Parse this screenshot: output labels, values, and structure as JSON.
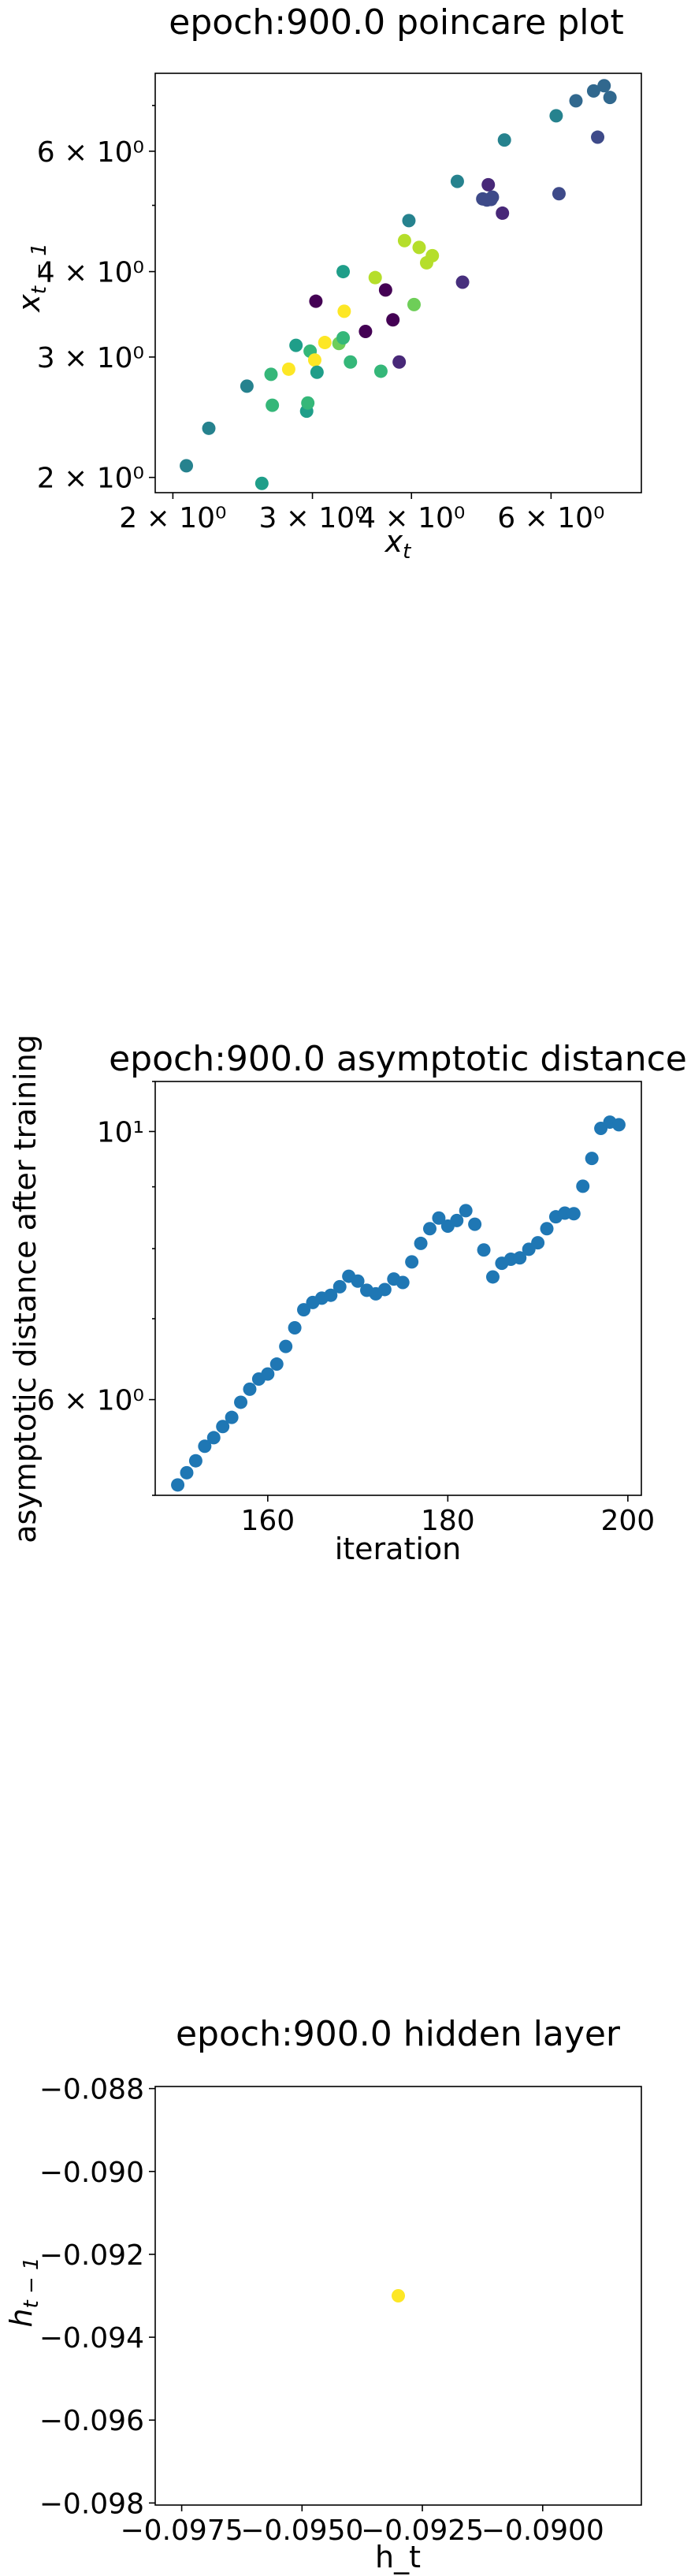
{
  "chart_data": [
    {
      "type": "scatter",
      "title": "epoch:900.0 poincare plot",
      "xlabel": "x_t",
      "ylabel": "x_{t-1}",
      "xscale": "log",
      "yscale": "log",
      "xlim": [
        1.9,
        7.8
      ],
      "ylim": [
        1.9,
        7.8
      ],
      "xticks": [
        {
          "value": 2,
          "label": "2 × 10⁰"
        },
        {
          "value": 3,
          "label": "3 × 10⁰"
        },
        {
          "value": 4,
          "label": "4 × 10⁰"
        },
        {
          "value": 6,
          "label": "6 × 10⁰"
        }
      ],
      "yticks": [
        {
          "value": 2,
          "label": "2 × 10⁰"
        },
        {
          "value": 3,
          "label": "3 × 10⁰"
        },
        {
          "value": 4,
          "label": "4 × 10⁰"
        },
        {
          "value": 6,
          "label": "6 × 10⁰"
        }
      ],
      "grid": false,
      "points": [
        {
          "x": 2.08,
          "y": 2.08,
          "c": "#26828e"
        },
        {
          "x": 2.22,
          "y": 2.36,
          "c": "#26828e"
        },
        {
          "x": 2.48,
          "y": 2.72,
          "c": "#26828e"
        },
        {
          "x": 2.59,
          "y": 1.96,
          "c": "#1f9e89"
        },
        {
          "x": 2.67,
          "y": 2.55,
          "c": "#35b779"
        },
        {
          "x": 2.66,
          "y": 2.83,
          "c": "#35b779"
        },
        {
          "x": 2.86,
          "y": 3.12,
          "c": "#1f9e89"
        },
        {
          "x": 2.8,
          "y": 2.88,
          "c": "#fde725"
        },
        {
          "x": 2.95,
          "y": 2.5,
          "c": "#1f9e89"
        },
        {
          "x": 2.96,
          "y": 2.57,
          "c": "#35b779"
        },
        {
          "x": 2.98,
          "y": 3.06,
          "c": "#35b779"
        },
        {
          "x": 3.02,
          "y": 2.97,
          "c": "#fde725"
        },
        {
          "x": 3.04,
          "y": 2.85,
          "c": "#1f9e89"
        },
        {
          "x": 3.03,
          "y": 3.62,
          "c": "#440154"
        },
        {
          "x": 3.11,
          "y": 3.15,
          "c": "#fde725"
        },
        {
          "x": 3.24,
          "y": 3.14,
          "c": "#6ece58"
        },
        {
          "x": 3.28,
          "y": 3.2,
          "c": "#35b779"
        },
        {
          "x": 3.29,
          "y": 3.5,
          "c": "#fde725"
        },
        {
          "x": 3.28,
          "y": 4.0,
          "c": "#1f9e89"
        },
        {
          "x": 3.35,
          "y": 2.95,
          "c": "#35b779"
        },
        {
          "x": 3.5,
          "y": 3.27,
          "c": "#440154"
        },
        {
          "x": 3.6,
          "y": 3.92,
          "c": "#b5de2b"
        },
        {
          "x": 3.66,
          "y": 2.86,
          "c": "#35b779"
        },
        {
          "x": 3.71,
          "y": 3.76,
          "c": "#440154"
        },
        {
          "x": 3.79,
          "y": 3.4,
          "c": "#440154"
        },
        {
          "x": 3.86,
          "y": 2.95,
          "c": "#482878"
        },
        {
          "x": 3.92,
          "y": 4.44,
          "c": "#b5de2b"
        },
        {
          "x": 3.97,
          "y": 4.75,
          "c": "#26828e"
        },
        {
          "x": 4.03,
          "y": 3.58,
          "c": "#6ece58"
        },
        {
          "x": 4.09,
          "y": 4.34,
          "c": "#b5de2b"
        },
        {
          "x": 4.18,
          "y": 4.12,
          "c": "#b5de2b"
        },
        {
          "x": 4.25,
          "y": 4.22,
          "c": "#b5de2b"
        },
        {
          "x": 4.57,
          "y": 5.42,
          "c": "#26828e"
        },
        {
          "x": 4.64,
          "y": 3.86,
          "c": "#472f7d"
        },
        {
          "x": 4.92,
          "y": 5.11,
          "c": "#3e4a89"
        },
        {
          "x": 4.98,
          "y": 5.09,
          "c": "#3e4a89"
        },
        {
          "x": 5.0,
          "y": 5.36,
          "c": "#482878"
        },
        {
          "x": 5.04,
          "y": 5.1,
          "c": "#3e4a89"
        },
        {
          "x": 5.06,
          "y": 5.14,
          "c": "#3e4a89"
        },
        {
          "x": 5.21,
          "y": 4.87,
          "c": "#482878"
        },
        {
          "x": 5.24,
          "y": 6.23,
          "c": "#26828e"
        },
        {
          "x": 6.09,
          "y": 6.76,
          "c": "#26828e"
        },
        {
          "x": 6.14,
          "y": 5.2,
          "c": "#3e4a89"
        },
        {
          "x": 6.45,
          "y": 7.11,
          "c": "#31688e"
        },
        {
          "x": 6.79,
          "y": 7.35,
          "c": "#31688e"
        },
        {
          "x": 6.87,
          "y": 6.29,
          "c": "#3e4a89"
        },
        {
          "x": 7.0,
          "y": 7.48,
          "c": "#31688e"
        },
        {
          "x": 7.12,
          "y": 7.19,
          "c": "#31688e"
        }
      ]
    },
    {
      "type": "scatter",
      "title": "epoch:900.0 asymptotic distance",
      "xlabel": "iteration",
      "ylabel": "asymptotic distance after training",
      "xscale": "linear",
      "yscale": "log",
      "xlim": [
        147.5,
        201.5
      ],
      "ylim": [
        5.0,
        11.0
      ],
      "xticks": [
        {
          "value": 160,
          "label": "160"
        },
        {
          "value": 180,
          "label": "180"
        },
        {
          "value": 200,
          "label": "200"
        }
      ],
      "yticks": [
        {
          "value": 6,
          "label": "6 × 10⁰"
        },
        {
          "value": 10,
          "label": "10¹"
        }
      ],
      "grid": false,
      "color": "#1f77b4",
      "x": [
        150,
        151,
        152,
        153,
        154,
        155,
        156,
        157,
        158,
        159,
        160,
        161,
        162,
        163,
        164,
        165,
        166,
        167,
        168,
        169,
        170,
        171,
        172,
        173,
        174,
        175,
        176,
        177,
        178,
        179,
        180,
        181,
        182,
        183,
        184,
        185,
        186,
        187,
        188,
        189,
        190,
        191,
        192,
        193,
        194,
        195,
        196,
        197,
        198,
        199
      ],
      "y": [
        5.1,
        5.22,
        5.34,
        5.49,
        5.58,
        5.7,
        5.8,
        5.97,
        6.12,
        6.24,
        6.3,
        6.42,
        6.64,
        6.88,
        7.12,
        7.22,
        7.28,
        7.32,
        7.44,
        7.59,
        7.52,
        7.39,
        7.34,
        7.4,
        7.55,
        7.5,
        7.8,
        8.08,
        8.31,
        8.48,
        8.35,
        8.44,
        8.6,
        8.38,
        7.98,
        7.58,
        7.78,
        7.84,
        7.86,
        7.99,
        8.09,
        8.31,
        8.5,
        8.56,
        8.55,
        9.01,
        9.5,
        10.06,
        10.18,
        10.13
      ]
    },
    {
      "type": "scatter",
      "title": "epoch:900.0 hidden layer",
      "xlabel": "h_t",
      "ylabel": "h_{t-1}",
      "xscale": "linear",
      "yscale": "linear",
      "xlim": [
        -0.09805,
        -0.08795
      ],
      "ylim": [
        -0.09805,
        -0.08795
      ],
      "xticks": [
        {
          "value": -0.0975,
          "label": "−0.0975"
        },
        {
          "value": -0.095,
          "label": "−0.0950"
        },
        {
          "value": -0.0925,
          "label": "−0.0925"
        },
        {
          "value": -0.09,
          "label": "−0.0900"
        }
      ],
      "yticks": [
        {
          "value": -0.098,
          "label": "−0.098"
        },
        {
          "value": -0.096,
          "label": "−0.096"
        },
        {
          "value": -0.094,
          "label": "−0.094"
        },
        {
          "value": -0.092,
          "label": "−0.092"
        },
        {
          "value": -0.09,
          "label": "−0.090"
        },
        {
          "value": -0.088,
          "label": "−0.088"
        }
      ],
      "grid": false,
      "points": [
        {
          "x": -0.093,
          "y": -0.093,
          "c": "#fde725"
        }
      ]
    }
  ]
}
